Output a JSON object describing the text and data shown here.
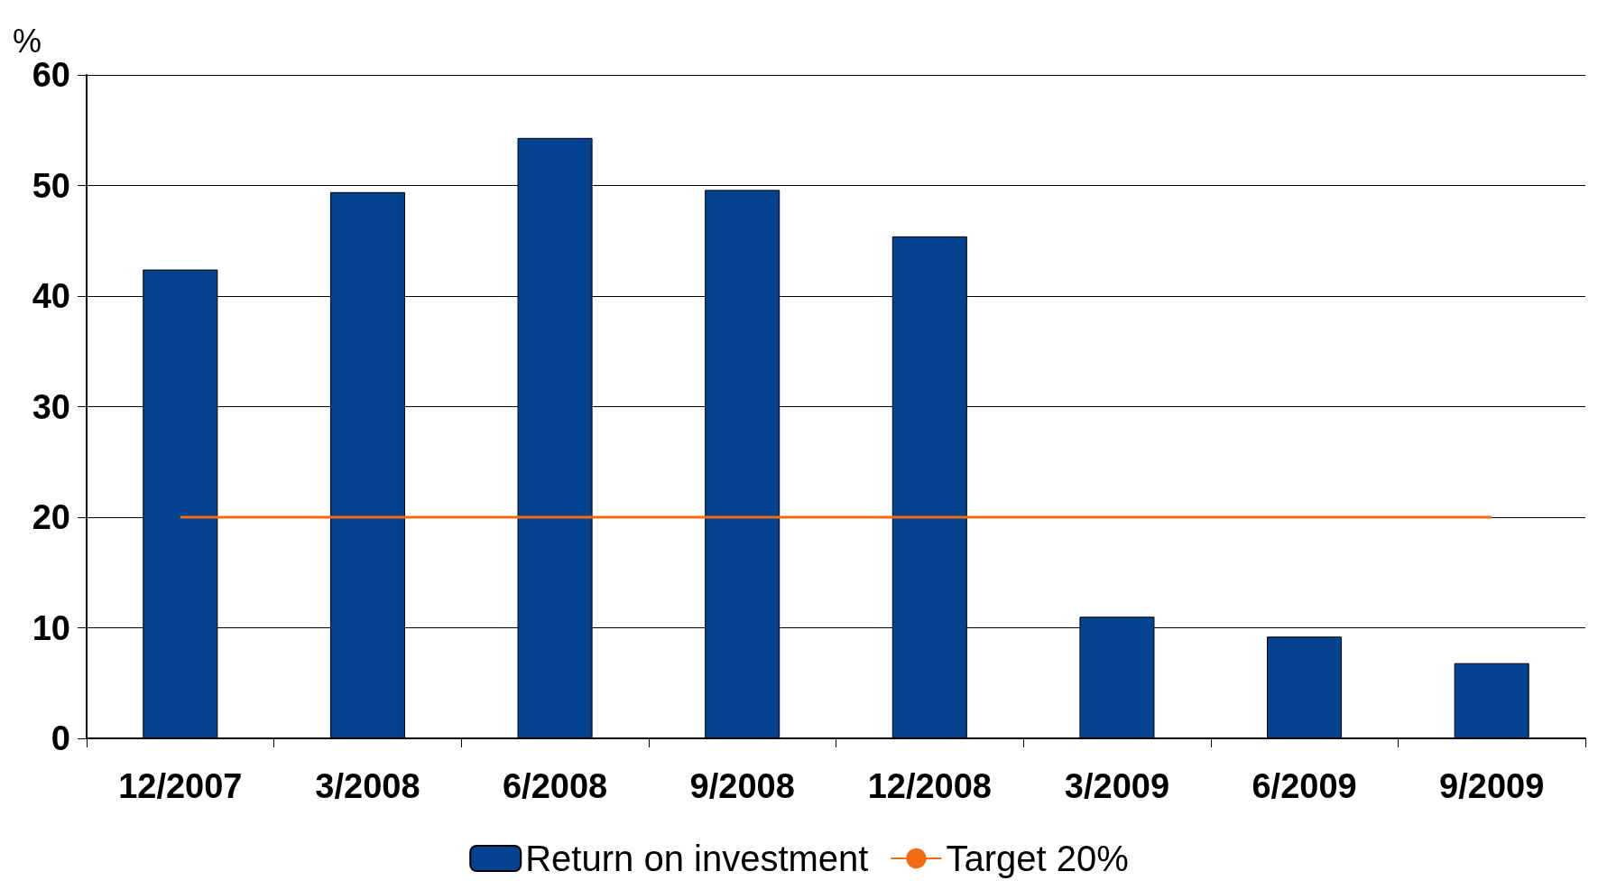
{
  "chart_data": {
    "type": "bar",
    "ylabel": "%",
    "categories": [
      "12/2007",
      "3/2008",
      "6/2008",
      "9/2008",
      "12/2008",
      "3/2009",
      "6/2009",
      "9/2009"
    ],
    "series": [
      {
        "name": "Return on investment",
        "color": "#03428e",
        "values": [
          42.4,
          49.4,
          54.3,
          49.6,
          45.4,
          11.0,
          9.2,
          6.8
        ]
      },
      {
        "name": "Target 20%",
        "type": "line",
        "color": "#f26b12",
        "values": [
          20,
          20,
          20,
          20,
          20,
          20,
          20,
          20
        ]
      }
    ],
    "ylim": [
      0,
      60
    ],
    "yticks": [
      0,
      10,
      20,
      30,
      40,
      50,
      60
    ],
    "grid": "y",
    "legend": "bottom",
    "marker": "none"
  }
}
